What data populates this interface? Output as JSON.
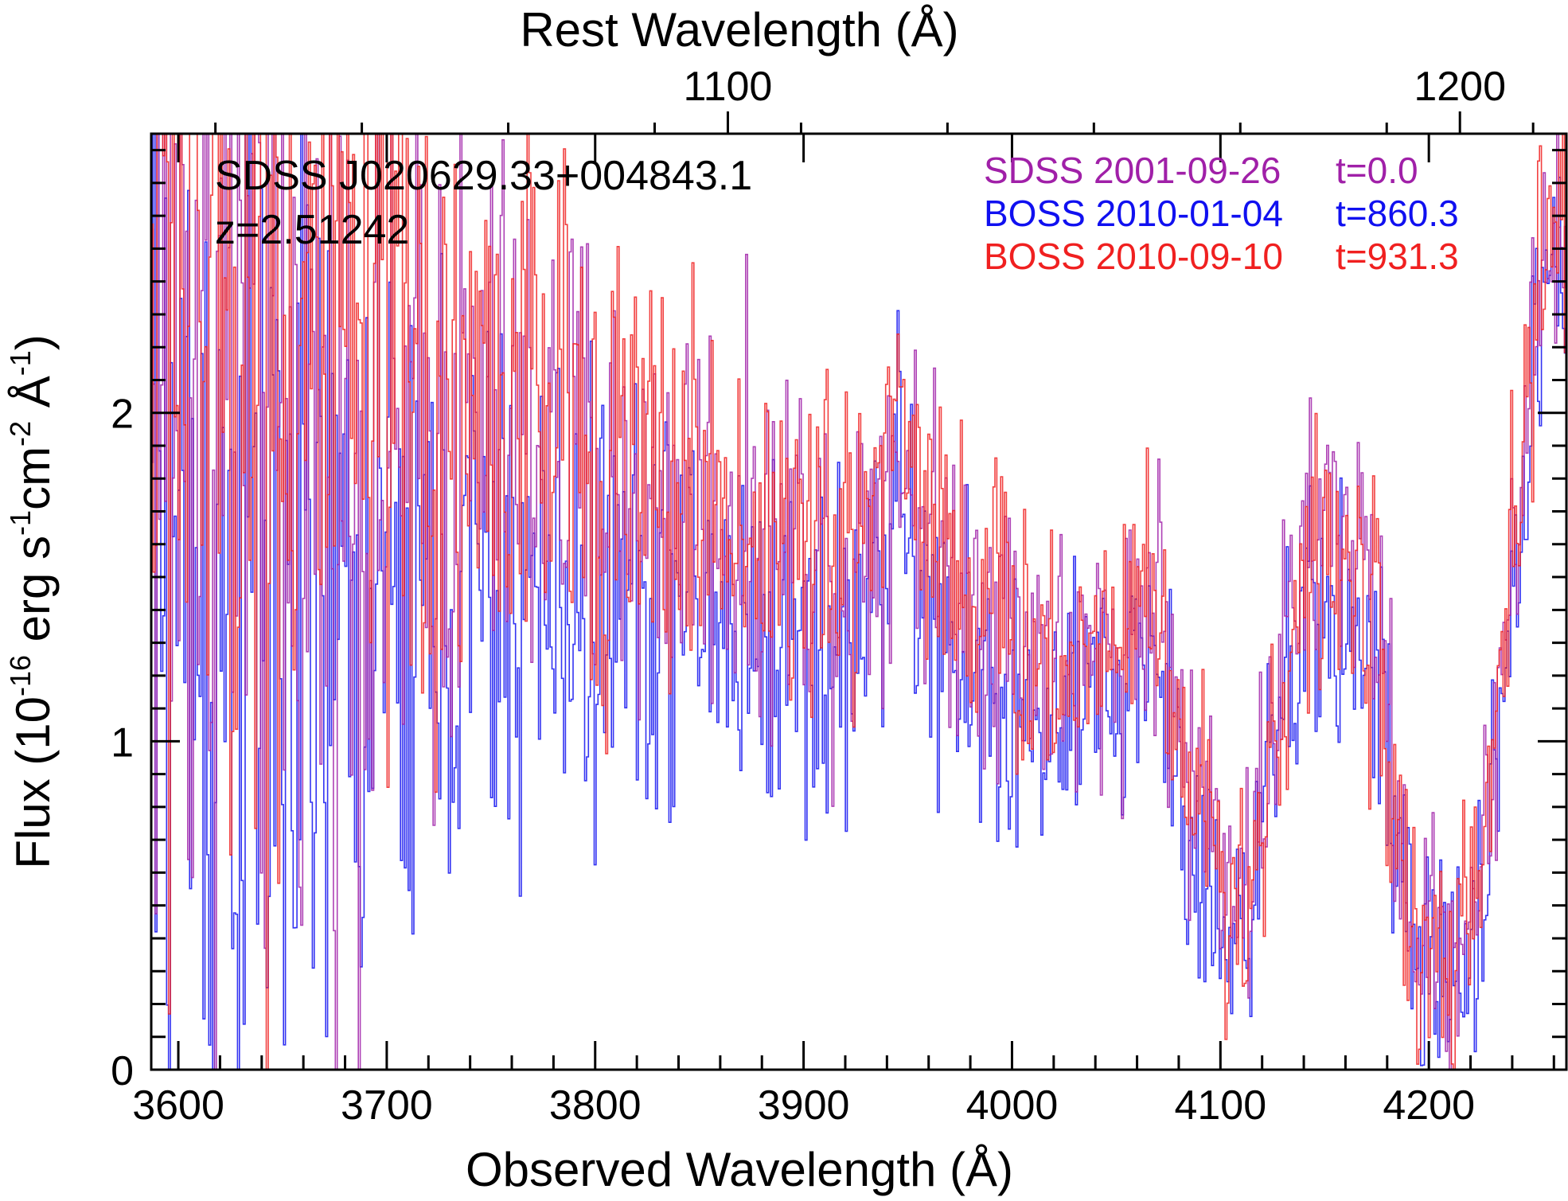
{
  "chart_data": {
    "type": "line",
    "object_name": "SDSS J020629.33+004843.1",
    "redshift_label": "z=2.51242",
    "xlabel": "Observed Wavelength (Å)",
    "ylabel_main": "Flux (10",
    "ylabel_exp1": "-16",
    "ylabel_mid1": " erg s",
    "ylabel_exp2": "-1",
    "ylabel_mid2": "cm",
    "ylabel_exp3": "-2",
    "ylabel_mid3": " Å",
    "ylabel_exp4": "-1",
    "ylabel_end": ")",
    "top_xlabel": "Rest Wavelength (Å)",
    "xlim": [
      3587,
      4266
    ],
    "ylim": [
      0,
      2.85
    ],
    "redshift": 2.51242,
    "x_ticks": [
      3600,
      3700,
      3800,
      3900,
      4000,
      4100,
      4200
    ],
    "x_tick_labels": [
      "3600",
      "3700",
      "3800",
      "3900",
      "4000",
      "4100",
      "4200"
    ],
    "y_ticks": [
      0,
      1,
      2
    ],
    "y_tick_labels": [
      "0",
      "1",
      "2"
    ],
    "top_ticks": [
      1100,
      1200
    ],
    "top_tick_labels": [
      "1100",
      "1200"
    ],
    "legend_placement": "top-right",
    "series": [
      {
        "name": "SDSS 2001-09-26",
        "time_label": "t=0.0",
        "color": "#a020a8",
        "x": [
          3595,
          3640,
          3680,
          3720,
          3760,
          3800,
          3830,
          3850,
          3880,
          3900,
          3920,
          3945,
          3965,
          3985,
          4010,
          4030,
          4050,
          4070,
          4085,
          4100,
          4112,
          4130,
          4150,
          4160,
          4175,
          4190,
          4210,
          4225,
          4240,
          4255,
          4266
        ],
        "y": [
          2.2,
          2.0,
          1.8,
          1.85,
          1.95,
          1.8,
          1.7,
          1.75,
          1.6,
          1.65,
          1.5,
          1.9,
          1.55,
          1.45,
          1.3,
          1.2,
          1.3,
          1.45,
          0.85,
          0.75,
          0.5,
          1.3,
          1.7,
          1.65,
          1.4,
          0.45,
          0.35,
          0.6,
          1.6,
          2.5,
          2.5
        ],
        "noise": [
          1.5,
          1.3,
          1.0,
          0.8,
          0.6,
          0.55,
          0.45,
          0.45,
          0.4,
          0.4,
          0.4,
          0.35,
          0.35,
          0.35,
          0.3,
          0.3,
          0.3,
          0.3,
          0.3,
          0.3,
          0.3,
          0.3,
          0.3,
          0.3,
          0.3,
          0.25,
          0.25,
          0.25,
          0.3,
          0.3,
          0.3
        ]
      },
      {
        "name": "BOSS 2010-01-04",
        "time_label": "t=860.3",
        "color": "#1010f0",
        "x": [
          3595,
          3640,
          3680,
          3720,
          3760,
          3800,
          3830,
          3850,
          3880,
          3900,
          3920,
          3945,
          3965,
          3985,
          4010,
          4030,
          4050,
          4070,
          4085,
          4100,
          4112,
          4130,
          4150,
          4160,
          4175,
          4190,
          4210,
          4225,
          4240,
          4255,
          4266
        ],
        "y": [
          1.6,
          1.3,
          1.35,
          1.4,
          1.45,
          1.4,
          1.45,
          1.4,
          1.3,
          1.3,
          1.25,
          1.75,
          1.25,
          1.15,
          1.0,
          1.05,
          1.15,
          1.3,
          0.6,
          0.55,
          0.4,
          1.1,
          1.45,
          1.35,
          1.2,
          0.35,
          0.25,
          0.5,
          1.45,
          2.4,
          2.35
        ],
        "noise": [
          1.4,
          1.2,
          0.9,
          0.75,
          0.6,
          0.5,
          0.45,
          0.45,
          0.4,
          0.4,
          0.4,
          0.35,
          0.35,
          0.35,
          0.3,
          0.3,
          0.3,
          0.3,
          0.3,
          0.3,
          0.3,
          0.3,
          0.3,
          0.3,
          0.3,
          0.25,
          0.25,
          0.25,
          0.3,
          0.3,
          0.3
        ]
      },
      {
        "name": "BOSS 2010-09-10",
        "time_label": "t=931.3",
        "color": "#f02020",
        "x": [
          3595,
          3640,
          3680,
          3720,
          3760,
          3800,
          3830,
          3850,
          3880,
          3900,
          3920,
          3945,
          3965,
          3985,
          4010,
          4030,
          4050,
          4070,
          4085,
          4100,
          4112,
          4130,
          4150,
          4160,
          4175,
          4190,
          4210,
          4225,
          4240,
          4255,
          4266
        ],
        "y": [
          2.4,
          2.3,
          2.1,
          2.0,
          2.05,
          1.9,
          1.75,
          1.75,
          1.65,
          1.55,
          1.55,
          2.05,
          1.6,
          1.45,
          1.25,
          1.2,
          1.45,
          1.45,
          0.8,
          0.7,
          0.45,
          1.2,
          1.6,
          1.5,
          1.3,
          0.4,
          0.3,
          0.55,
          1.6,
          2.55,
          2.6
        ],
        "noise": [
          1.5,
          1.3,
          1.0,
          0.8,
          0.65,
          0.55,
          0.45,
          0.45,
          0.4,
          0.4,
          0.4,
          0.35,
          0.35,
          0.35,
          0.3,
          0.3,
          0.3,
          0.3,
          0.3,
          0.3,
          0.3,
          0.3,
          0.3,
          0.3,
          0.3,
          0.25,
          0.25,
          0.25,
          0.3,
          0.3,
          0.3
        ]
      }
    ]
  }
}
